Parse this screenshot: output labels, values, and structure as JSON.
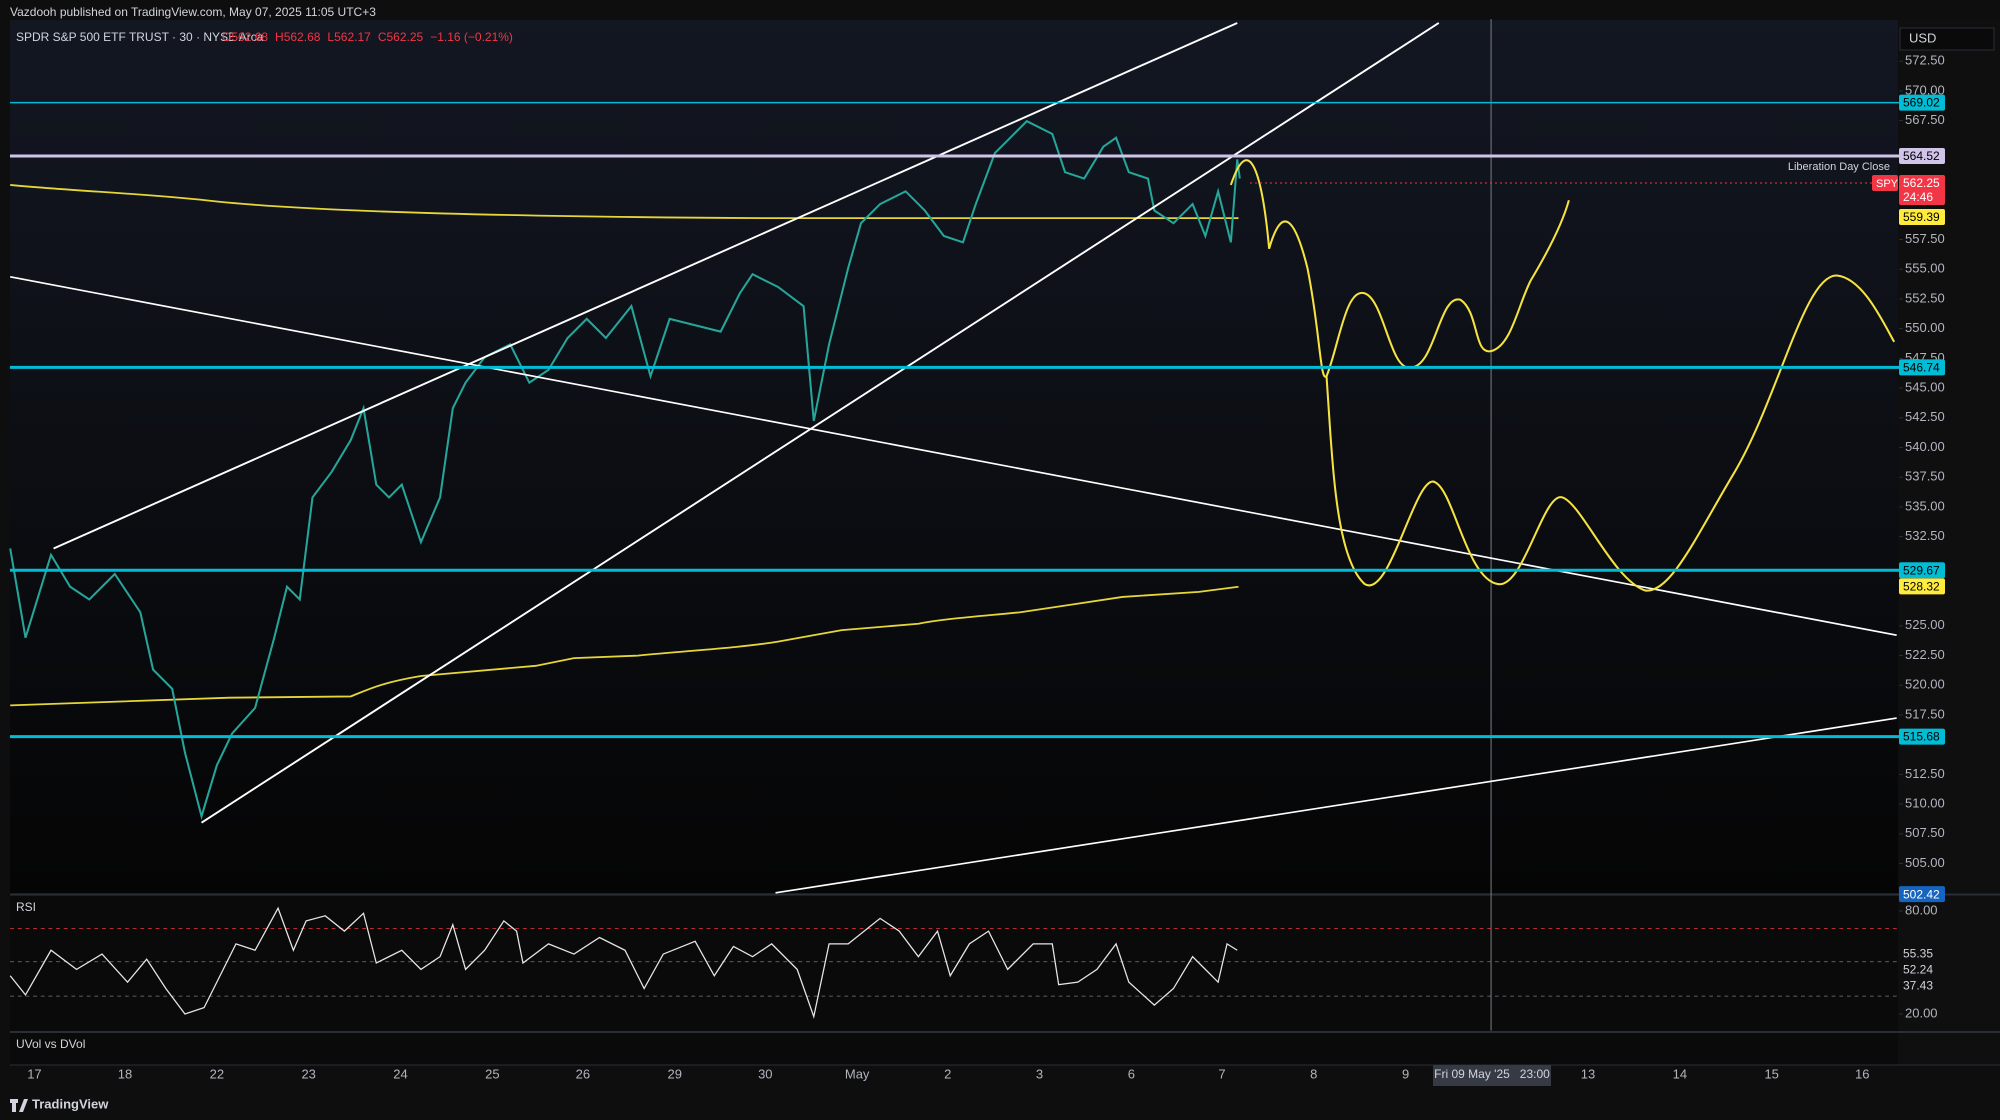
{
  "header": {
    "publisher": "Vazdooh published on TradingView.com, May 07, 2025 11:05 UTC+3",
    "symbol": "SPDR S&P 500 ETF TRUST · 30 · NYSE Arca",
    "ohlc": {
      "open": "O562.68",
      "high": "H562.68",
      "low": "L562.17",
      "close": "C562.25",
      "change": "−1.16 (−0.21%)"
    }
  },
  "currency": "USD",
  "price_axis": {
    "ticks": [
      {
        "value": 572.5,
        "label": "572.50"
      },
      {
        "value": 570,
        "label": "570.00"
      },
      {
        "value": 567.5,
        "label": "567.50"
      },
      {
        "value": 557.5,
        "label": "557.50"
      },
      {
        "value": 555,
        "label": "555.00"
      },
      {
        "value": 552.5,
        "label": "552.50"
      },
      {
        "value": 550,
        "label": "550.00"
      },
      {
        "value": 547.5,
        "label": "547.50"
      },
      {
        "value": 545,
        "label": "545.00"
      },
      {
        "value": 542.5,
        "label": "542.50"
      },
      {
        "value": 540,
        "label": "540.00"
      },
      {
        "value": 537.5,
        "label": "537.50"
      },
      {
        "value": 535,
        "label": "535.00"
      },
      {
        "value": 532.5,
        "label": "532.50"
      },
      {
        "value": 525,
        "label": "525.00"
      },
      {
        "value": 522.5,
        "label": "522.50"
      },
      {
        "value": 520,
        "label": "520.00"
      },
      {
        "value": 517.5,
        "label": "517.50"
      },
      {
        "value": 512.5,
        "label": "512.50"
      },
      {
        "value": 510,
        "label": "510.00"
      },
      {
        "value": 507.5,
        "label": "507.50"
      },
      {
        "value": 505,
        "label": "505.00"
      }
    ]
  },
  "levels": [
    {
      "value": 569.02,
      "color": "#00bcd4",
      "style": "solid"
    },
    {
      "value": 564.52,
      "color": "#d1c4e9",
      "style": "thick"
    },
    {
      "value": 559.39,
      "color": "#ffeb3b",
      "style": "none"
    },
    {
      "value": 546.74,
      "color": "#00bcd4",
      "style": "thick"
    },
    {
      "value": 529.67,
      "color": "#00bcd4",
      "style": "thick"
    },
    {
      "value": 528.32,
      "color": "#ffeb3b",
      "style": "none"
    },
    {
      "value": 515.68,
      "color": "#00bcd4",
      "style": "thick"
    },
    {
      "value": 502.42,
      "color": "#1565c0",
      "style": "none"
    }
  ],
  "last_price": {
    "symbol": "SPY",
    "value": 562.25,
    "countdown": "24:46",
    "color": "#f23645"
  },
  "annotation": "Liberation Day Close",
  "rsi": {
    "title": "RSI",
    "ticks": [
      {
        "value": 80,
        "label": "80.00"
      },
      {
        "value": 20,
        "label": "20.00"
      }
    ],
    "values": [
      55.35,
      52.24,
      37.43
    ]
  },
  "uvol_title": "UVol vs DVol",
  "time_axis": {
    "labels": [
      "17",
      "18",
      "22",
      "23",
      "24",
      "25",
      "26",
      "29",
      "30",
      "May",
      "2",
      "3",
      "6",
      "7",
      "8",
      "9",
      "13",
      "14",
      "15",
      "16"
    ],
    "crosshair": "Fri 09 May '25   23:00"
  },
  "footer": "TradingView"
}
